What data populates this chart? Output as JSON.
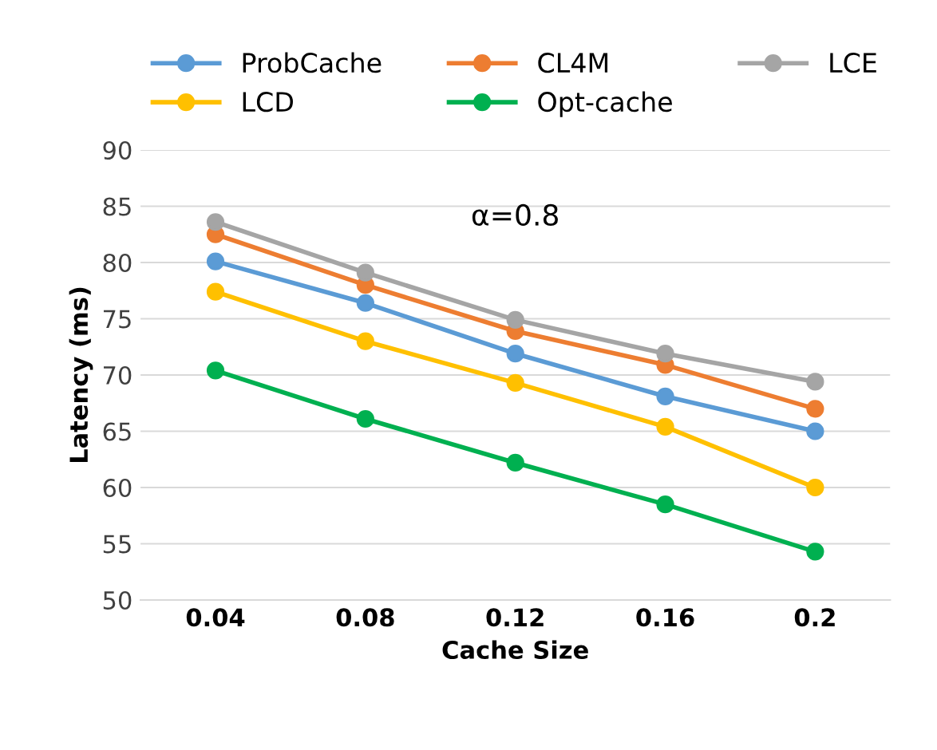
{
  "chart_data": {
    "type": "line",
    "xlabel": "Cache Size",
    "ylabel": "Latency (ms)",
    "categories": [
      "0.04",
      "0.08",
      "0.12",
      "0.16",
      "0.2"
    ],
    "series": [
      {
        "name": "ProbCache",
        "color": "#5b9bd5",
        "values": [
          80.1,
          76.4,
          71.9,
          68.1,
          65.0
        ]
      },
      {
        "name": "CL4M",
        "color": "#ed7d31",
        "values": [
          82.5,
          78.0,
          73.9,
          70.9,
          67.0
        ]
      },
      {
        "name": "LCE",
        "color": "#a5a5a5",
        "values": [
          83.6,
          79.1,
          74.9,
          71.9,
          69.4
        ]
      },
      {
        "name": "LCD",
        "color": "#ffc000",
        "values": [
          77.4,
          73.0,
          69.3,
          65.4,
          60.0
        ]
      },
      {
        "name": "Opt-cache",
        "color": "#00b050",
        "values": [
          70.4,
          66.1,
          62.2,
          58.5,
          54.3
        ]
      }
    ],
    "annotations": [
      "α=0.8"
    ],
    "ylim": [
      50,
      90
    ],
    "yticks": [
      50,
      55,
      60,
      65,
      70,
      75,
      80,
      85,
      90
    ],
    "grid": "y",
    "legend": "top",
    "marker": "circle",
    "line_style": "solid"
  }
}
